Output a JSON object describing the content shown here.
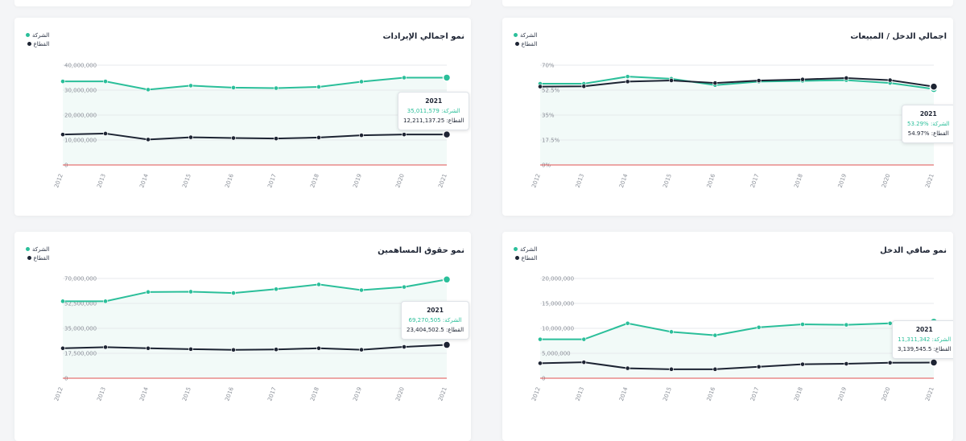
{
  "legend": {
    "company": "الشركة",
    "sector": "القطاع"
  },
  "colors": {
    "company": "#2bbf9a",
    "sector": "#1d2433",
    "baseline": "#e05252",
    "grid": "#e7e9ec",
    "fill": "#eaf6f3"
  },
  "cards": [
    {
      "title": "نمو اجمالي الإيرادات",
      "tooltip": {
        "year": "2021",
        "company_label": "الشركة:",
        "company_value": "35,011,579",
        "sector_label": "القطاع:",
        "sector_value": "12,211,137.25"
      }
    },
    {
      "title": "اجمالي الدخل / المبيعات",
      "tooltip": {
        "year": "2021",
        "company_label": "الشركة:",
        "company_value": "%53.29",
        "sector_label": "القطاع:",
        "sector_value": "%54.97"
      }
    },
    {
      "title": "نمو حقوق المساهمين",
      "tooltip": {
        "year": "2021",
        "company_label": "الشركة:",
        "company_value": "69,270,505",
        "sector_label": "القطاع:",
        "sector_value": "23,404,502.5"
      }
    },
    {
      "title": "نمو صافي الدخل",
      "tooltip": {
        "year": "2021",
        "company_label": "الشركة:",
        "company_value": "11,311,342",
        "sector_label": "القطاع:",
        "sector_value": "3,139,545.5"
      }
    }
  ],
  "chart_data": [
    {
      "type": "line",
      "title": "نمو اجمالي الإيرادات",
      "x": [
        "2012",
        "2013",
        "2014",
        "2015",
        "2016",
        "2017",
        "2018",
        "2019",
        "2020",
        "2021"
      ],
      "yticks": [
        "0",
        "10,000,000",
        "20,000,000",
        "30,000,000",
        "40,000,000"
      ],
      "ylim": [
        0,
        40000000
      ],
      "series": [
        {
          "name": "الشركة",
          "values": [
            33500000,
            33500000,
            30200000,
            31800000,
            31000000,
            30800000,
            31300000,
            33400000,
            35000000,
            35011579
          ]
        },
        {
          "name": "القطاع",
          "values": [
            12200000,
            12600000,
            10200000,
            11100000,
            10800000,
            10600000,
            11000000,
            11900000,
            12200000,
            12211137.25
          ]
        }
      ]
    },
    {
      "type": "line",
      "title": "اجمالي الدخل / المبيعات",
      "x": [
        "2012",
        "2013",
        "2014",
        "2015",
        "2016",
        "2017",
        "2018",
        "2019",
        "2020",
        "2021"
      ],
      "yticks": [
        "0%",
        "17.5%",
        "35%",
        "52.5%",
        "70%"
      ],
      "ylim": [
        0,
        70
      ],
      "series": [
        {
          "name": "الشركة",
          "values": [
            57,
            57,
            62,
            60.5,
            56,
            58.5,
            59,
            59.5,
            57.5,
            53.29
          ]
        },
        {
          "name": "القطاع",
          "values": [
            55,
            55.2,
            58.5,
            59.3,
            57.5,
            59.2,
            60,
            61,
            59.5,
            54.97
          ]
        }
      ]
    },
    {
      "type": "line",
      "title": "نمو حقوق المساهمين",
      "x": [
        "2012",
        "2013",
        "2014",
        "2015",
        "2016",
        "2017",
        "2018",
        "2019",
        "2020",
        "2021"
      ],
      "yticks": [
        "0",
        "17,500,000",
        "35,000,000",
        "52,500,000",
        "70,000,000"
      ],
      "ylim": [
        0,
        70000000
      ],
      "series": [
        {
          "name": "الشركة",
          "values": [
            54000000,
            54000000,
            60500000,
            60700000,
            59800000,
            62500000,
            65800000,
            61800000,
            64000000,
            69270505
          ]
        },
        {
          "name": "القطاع",
          "values": [
            21000000,
            21800000,
            21000000,
            20400000,
            19900000,
            20200000,
            21000000,
            20000000,
            22000000,
            23404502.5
          ]
        }
      ]
    },
    {
      "type": "line",
      "title": "نمو صافي الدخل",
      "x": [
        "2012",
        "2013",
        "2014",
        "2015",
        "2016",
        "2017",
        "2018",
        "2019",
        "2020",
        "2021"
      ],
      "yticks": [
        "0",
        "5,000,000",
        "10,000,000",
        "15,000,000",
        "20,000,000"
      ],
      "ylim": [
        0,
        20000000
      ],
      "series": [
        {
          "name": "الشركة",
          "values": [
            7800000,
            7800000,
            11000000,
            9300000,
            8600000,
            10200000,
            10800000,
            10700000,
            11000000,
            11311342
          ]
        },
        {
          "name": "القطاع",
          "values": [
            3000000,
            3200000,
            2000000,
            1800000,
            1800000,
            2300000,
            2800000,
            2900000,
            3100000,
            3139545.5
          ]
        }
      ]
    }
  ]
}
